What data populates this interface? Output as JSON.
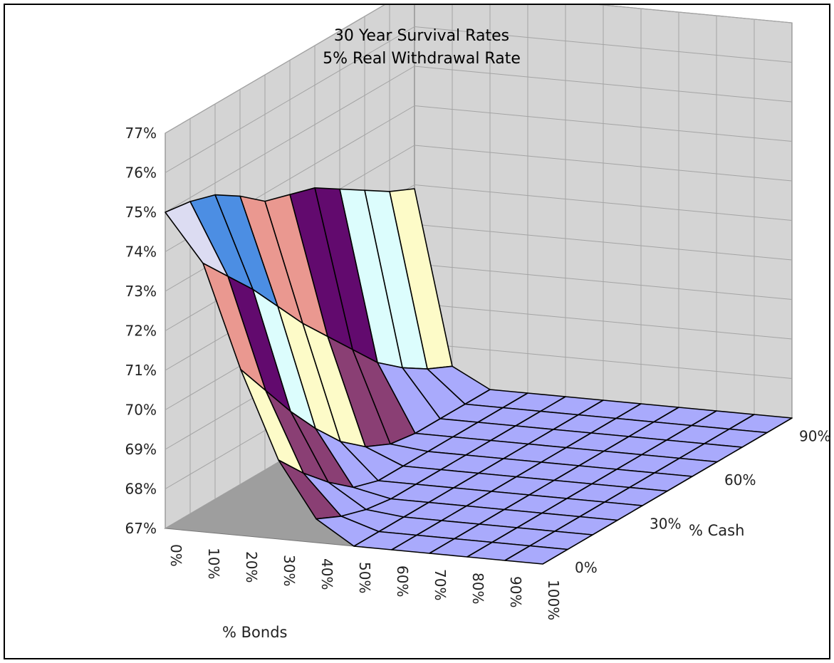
{
  "chart_data": {
    "type": "surface",
    "title_lines": [
      "30   Year   Survival   Rates",
      "5%   Real   Withdrawal   Rate"
    ],
    "x_axis": {
      "label": "%   Bonds",
      "categories": [
        "0%",
        "10%",
        "20%",
        "30%",
        "40%",
        "50%",
        "60%",
        "70%",
        "80%",
        "90%",
        "100%"
      ]
    },
    "depth_axis": {
      "label": "%   Cash",
      "tick_labels": [
        "0%",
        "30%",
        "60%",
        "90%"
      ],
      "categories": [
        "0%",
        "10%",
        "20%",
        "30%",
        "40%",
        "50%",
        "60%",
        "70%",
        "80%",
        "90%",
        "100%"
      ]
    },
    "z_axis": {
      "tick_labels": [
        "67%",
        "68%",
        "69%",
        "70%",
        "71%",
        "72%",
        "73%",
        "74%",
        "75%",
        "76%",
        "77%"
      ],
      "range": [
        67,
        77
      ]
    },
    "surface_values_note_ignored": "",
    "values_by_bonds": [
      [
        75.0,
        74.9,
        74.7,
        74.3,
        73.8,
        73.6,
        73.4,
        73.0,
        72.6,
        72.2,
        71.9
      ],
      [
        73.8,
        73.1,
        72.4,
        71.6,
        70.8,
        70.1,
        69.4,
        68.7,
        68.2,
        67.8,
        67.5
      ],
      [
        71.2,
        70.3,
        69.4,
        68.6,
        67.9,
        67.4,
        67.1,
        67.0,
        67.0,
        67.0,
        67.0
      ],
      [
        69.0,
        68.3,
        67.7,
        67.2,
        67.0,
        67.0,
        67.0,
        67.0,
        67.0,
        67.0,
        67.0
      ],
      [
        67.6,
        67.3,
        67.1,
        67.0,
        67.0,
        67.0,
        67.0,
        67.0,
        67.0,
        67.0,
        67.0
      ],
      [
        67.0,
        67.0,
        67.0,
        67.0,
        67.0,
        67.0,
        67.0,
        67.0,
        67.0,
        67.0,
        67.0
      ],
      [
        67.0,
        67.0,
        67.0,
        67.0,
        67.0,
        67.0,
        67.0,
        67.0,
        67.0,
        67.0,
        67.0
      ],
      [
        67.0,
        67.0,
        67.0,
        67.0,
        67.0,
        67.0,
        67.0,
        67.0,
        67.0,
        67.0,
        67.0
      ],
      [
        67.0,
        67.0,
        67.0,
        67.0,
        67.0,
        67.0,
        67.0,
        67.0,
        67.0,
        67.0,
        67.0
      ],
      [
        67.0,
        67.0,
        67.0,
        67.0,
        67.0,
        67.0,
        67.0,
        67.0,
        67.0,
        67.0,
        67.0
      ],
      [
        67.0,
        67.0,
        67.0,
        67.0,
        67.0,
        67.0,
        67.0,
        67.0,
        67.0,
        67.0,
        67.0
      ]
    ],
    "band_colors": [
      "#a9aafc",
      "#8a3f74",
      "#fdfbc8",
      "#dcfdfd",
      "#620a6e",
      "#ea9890",
      "#4c8ee3",
      "#dcdcf2",
      "#0b29a6",
      "#0b29a6"
    ],
    "wall_color": "#d4d4d4",
    "floor_color": "#9e9e9e",
    "grid": true
  }
}
